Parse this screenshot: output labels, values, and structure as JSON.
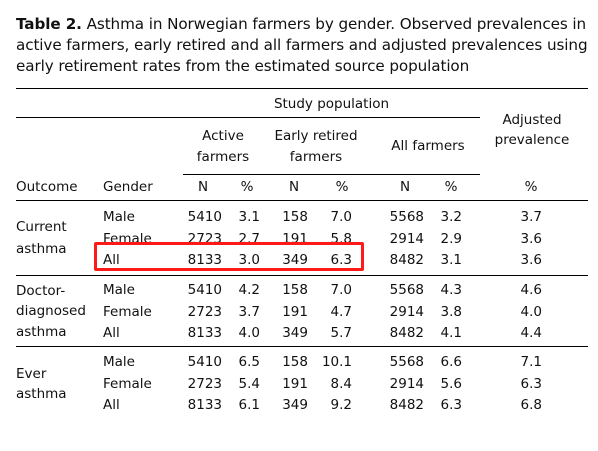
{
  "caption": {
    "label": "Table 2.",
    "text": " Asthma in Norwegian farmers by gender. Observed prevalences in active farmers, early retired and all farmers and adjusted prevalences using early retirement rates from the estimated source population"
  },
  "headers": {
    "study_population": "Study population",
    "active": [
      "Active",
      "farmers"
    ],
    "early": [
      "Early retired",
      "farmers"
    ],
    "all": "All farmers",
    "adjusted": [
      "Adjusted",
      "prevalence"
    ],
    "outcome": "Outcome",
    "gender": "Gender",
    "n": "N",
    "pct": "%"
  },
  "groups": [
    {
      "outcome": [
        "Current",
        "asthma"
      ],
      "rows": [
        {
          "gender": "Male",
          "a_n": "5410",
          "a_p": "3.1",
          "e_n": "158",
          "e_p": "7.0",
          "t_n": "5568",
          "t_p": "3.2",
          "adj": "3.7"
        },
        {
          "gender": "Female",
          "a_n": "2723",
          "a_p": "2.7",
          "e_n": "191",
          "e_p": "5.8",
          "t_n": "2914",
          "t_p": "2.9",
          "adj": "3.6"
        },
        {
          "gender": "All",
          "a_n": "8133",
          "a_p": "3.0",
          "e_n": "349",
          "e_p": "6.3",
          "t_n": "8482",
          "t_p": "3.1",
          "adj": "3.6"
        }
      ]
    },
    {
      "outcome": [
        "Doctor-",
        "diagnosed",
        "asthma"
      ],
      "rows": [
        {
          "gender": "Male",
          "a_n": "5410",
          "a_p": "4.2",
          "e_n": "158",
          "e_p": "7.0",
          "t_n": "5568",
          "t_p": "4.3",
          "adj": "4.6"
        },
        {
          "gender": "Female",
          "a_n": "2723",
          "a_p": "3.7",
          "e_n": "191",
          "e_p": "4.7",
          "t_n": "2914",
          "t_p": "3.8",
          "adj": "4.0"
        },
        {
          "gender": "All",
          "a_n": "8133",
          "a_p": "4.0",
          "e_n": "349",
          "e_p": "5.7",
          "t_n": "8482",
          "t_p": "4.1",
          "adj": "4.4"
        }
      ]
    },
    {
      "outcome": [
        "Ever",
        "asthma"
      ],
      "rows": [
        {
          "gender": "Male",
          "a_n": "5410",
          "a_p": "6.5",
          "e_n": "158",
          "e_p": "10.1",
          "t_n": "5568",
          "t_p": "6.6",
          "adj": "7.1"
        },
        {
          "gender": "Female",
          "a_n": "2723",
          "a_p": "5.4",
          "e_n": "191",
          "e_p": "8.4",
          "t_n": "2914",
          "t_p": "5.6",
          "adj": "6.3"
        },
        {
          "gender": "All",
          "a_n": "8133",
          "a_p": "6.1",
          "e_n": "349",
          "e_p": "9.2",
          "t_n": "8482",
          "t_p": "6.3",
          "adj": "6.8"
        }
      ]
    }
  ],
  "highlight": {
    "color": "#ff1a1a"
  }
}
